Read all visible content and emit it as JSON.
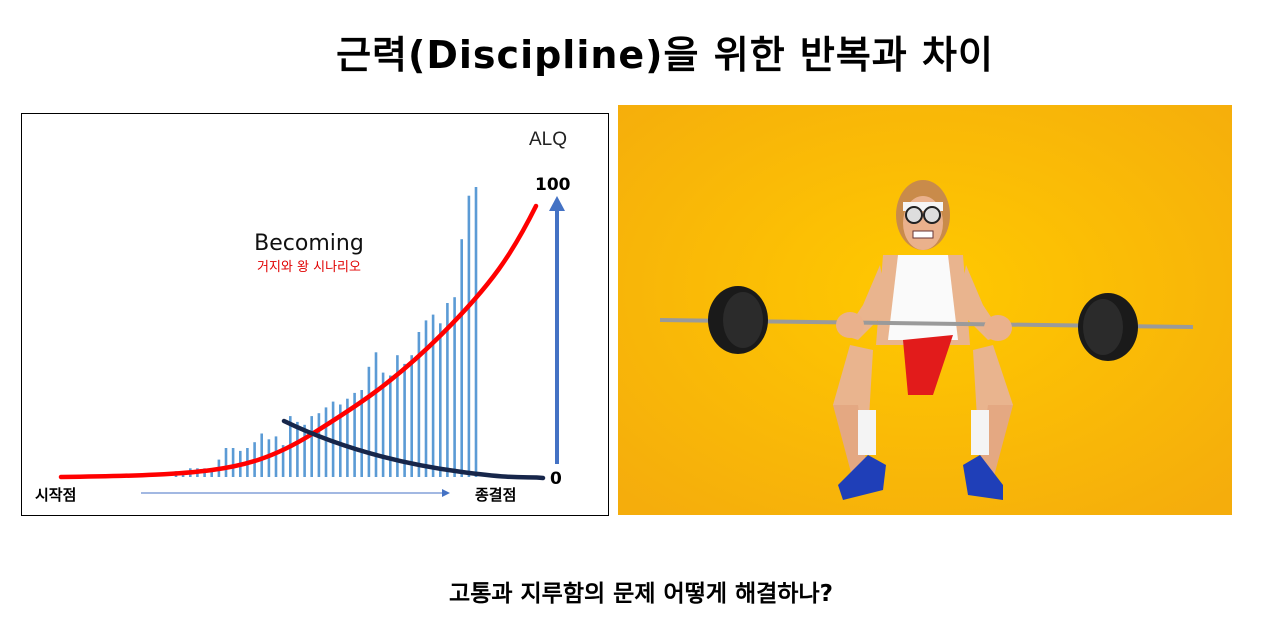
{
  "slide": {
    "title": "근력(Discipline)을 위한 반복과 차이",
    "footer": "고통과 지루함의 문제 어떻게 해결하나?"
  },
  "chart_data": {
    "type": "bar",
    "title": "Becoming",
    "subtitle": "거지와 왕 시나리오",
    "ylabel": "ALQ",
    "ylim": [
      0,
      100
    ],
    "y_tick_labels": [
      "0",
      "100"
    ],
    "x_start_label": "시작점",
    "x_end_label": "종결점",
    "grid": false,
    "values": [
      2,
      2,
      3,
      3,
      3,
      3,
      6,
      10,
      10,
      9,
      10,
      12,
      15,
      13,
      14,
      11,
      21,
      19,
      18,
      21,
      22,
      24,
      26,
      25,
      27,
      29,
      30,
      38,
      43,
      36,
      35,
      42,
      39,
      42,
      50,
      54,
      56,
      53,
      60,
      62,
      82,
      97,
      100
    ],
    "overlays": [
      {
        "kind": "growth-curve",
        "color": "#ff0000"
      },
      {
        "kind": "decline-curve",
        "color": "#17264a"
      }
    ],
    "colors": {
      "bars": "#5b9bd5",
      "axis_arrow": "#4472c4",
      "subtitle": "#e00000"
    }
  },
  "photo": {
    "description_icon": "weightlifter-photo",
    "background_color": "#fdb913"
  }
}
